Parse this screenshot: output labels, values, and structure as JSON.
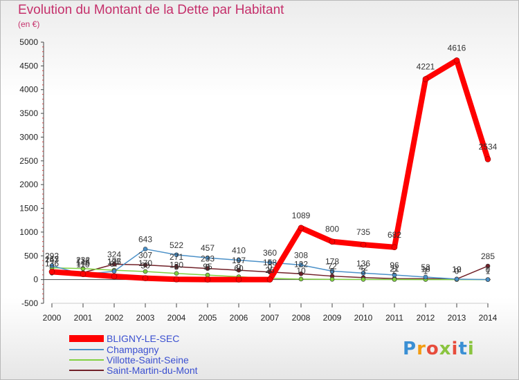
{
  "header": {
    "title": "Evolution du Montant de la Dette par Habitant",
    "subtitle": "(en €)"
  },
  "logo": {
    "text": "Proxiti",
    "colors": [
      "#3a8fd4",
      "#f39c12",
      "#e74c3c",
      "#8ac43f",
      "#e74c3c",
      "#3a8fd4",
      "#8ac43f"
    ]
  },
  "chart_data": {
    "type": "line",
    "title": "Evolution du Montant de la Dette par Habitant",
    "subtitle": "(en €)",
    "x": [
      2000,
      2001,
      2002,
      2003,
      2004,
      2005,
      2006,
      2007,
      2008,
      2009,
      2010,
      2011,
      2012,
      2013,
      2014
    ],
    "ylim": [
      -500,
      5000
    ],
    "yticks": [
      -500,
      0,
      500,
      1000,
      1500,
      2000,
      2500,
      3000,
      3500,
      4000,
      4500,
      5000
    ],
    "grid": false,
    "legend": "bottom-left",
    "series": [
      {
        "name": "BLIGNY-LE-SEC",
        "color": "#ff0000",
        "values": [
          163,
          116,
          67,
          30,
          5,
          0,
          0,
          0,
          1089,
          800,
          735,
          682,
          4221,
          4616,
          2534
        ],
        "labels": [
          "163",
          "116",
          "67",
          "30",
          "5",
          "0",
          "0",
          "0",
          "1089",
          "800",
          "735",
          "682",
          "4221",
          "4616",
          "2534"
        ]
      },
      {
        "name": "Champagny",
        "color": "#4a90c8",
        "values": [
          292,
          110,
          175,
          643,
          522,
          457,
          410,
          360,
          308,
          178,
          136,
          96,
          53,
          10,
          0
        ],
        "labels": [
          "292",
          "110",
          "175",
          "643",
          "522",
          "457",
          "410",
          "360",
          "308",
          "178",
          "136",
          "96",
          "53",
          "10",
          "0"
        ]
      },
      {
        "name": "Villotte-Saint-Seine",
        "color": "#80d040",
        "values": [
          247,
          232,
          197,
          170,
          130,
          95,
          60,
          25,
          10,
          5,
          3,
          2,
          1,
          0,
          1
        ],
        "labels": [
          "247",
          "232",
          "197",
          "170",
          "130",
          "95",
          "60",
          "25",
          "10",
          "5",
          "3",
          "2",
          "1",
          "0",
          "1"
        ]
      },
      {
        "name": "Saint-Martin-du-Mont",
        "color": "#702028",
        "values": [
          136,
          146,
          324,
          307,
          271,
          233,
          197,
          158,
          122,
          72,
          42,
          21,
          18,
          12,
          285
        ],
        "labels": [
          "136",
          "146",
          "324",
          "307",
          "271",
          "233",
          "197",
          "158",
          "122",
          "72",
          "42",
          "21",
          "18",
          "12",
          "285"
        ]
      }
    ]
  }
}
